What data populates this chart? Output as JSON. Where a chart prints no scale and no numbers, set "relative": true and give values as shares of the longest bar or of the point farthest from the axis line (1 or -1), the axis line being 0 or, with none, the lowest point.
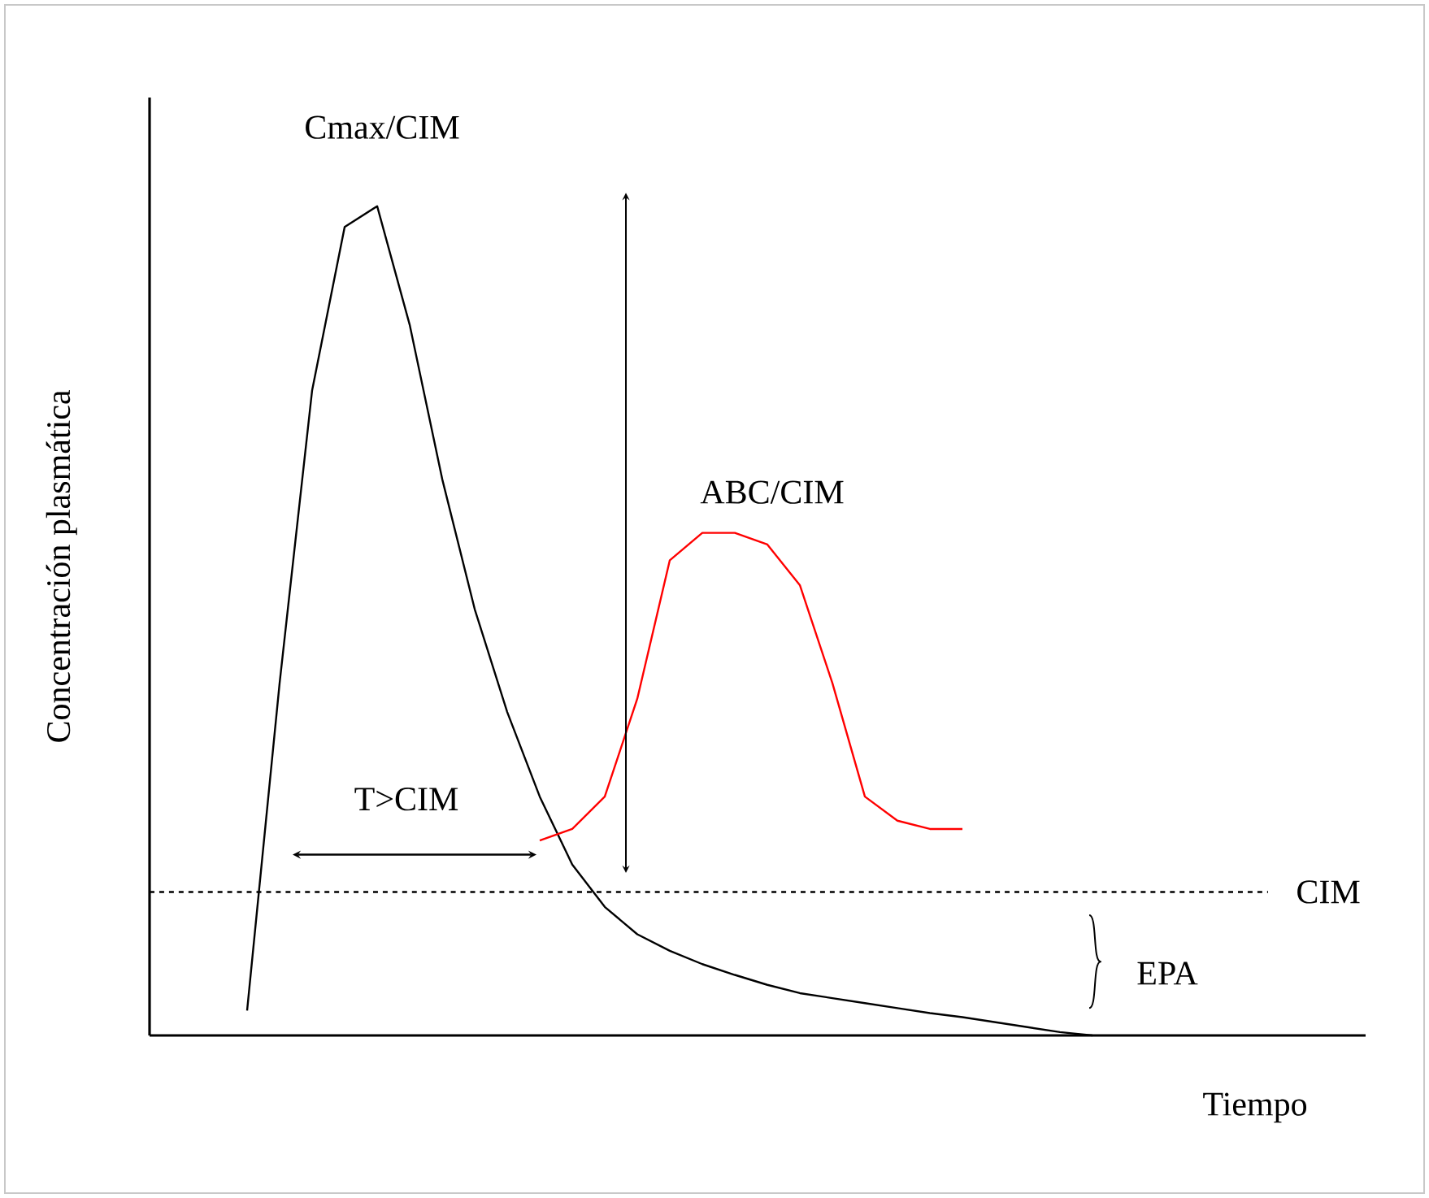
{
  "chart_data": {
    "type": "line",
    "relative": true,
    "xlabel": "Tiempo",
    "ylabel": "Concentración plasmática",
    "categories": [
      null,
      null,
      null,
      null,
      null,
      null,
      null,
      null,
      null,
      null,
      null,
      null,
      null,
      null,
      null,
      null,
      null,
      null,
      null,
      null,
      null,
      null,
      null,
      null,
      null,
      null,
      null,
      null,
      null,
      null,
      null,
      null,
      null,
      null,
      null,
      null,
      null,
      null
    ],
    "series": [
      {
        "color": "#000000",
        "values": [
          null,
          null,
          null,
          0.03,
          0.425,
          0.778,
          0.975,
          1,
          0.857,
          0.671,
          0.514,
          0.39,
          0.288,
          0.206,
          0.155,
          0.122,
          0.102,
          0.086,
          0.073,
          0.061,
          0.051,
          0.045,
          0.039,
          0.033,
          0.027,
          0.022,
          0.016,
          0.01,
          0.004,
          0,
          null,
          null,
          null,
          null,
          null,
          null,
          null,
          null
        ]
      },
      {
        "color": "#ff0000",
        "values": [
          null,
          null,
          null,
          null,
          null,
          null,
          null,
          null,
          null,
          null,
          null,
          null,
          0.235,
          0.249,
          0.288,
          0.406,
          0.573,
          0.606,
          0.606,
          0.592,
          0.543,
          0.425,
          0.288,
          0.259,
          0.249,
          0.249,
          null,
          null,
          null,
          null,
          null,
          null,
          null,
          null,
          null,
          null,
          null,
          null
        ]
      }
    ],
    "ref_lines": [
      {
        "axis": "y",
        "value": 0.173,
        "label": "CIM",
        "line_style": "dashed",
        "color": "#000000"
      }
    ],
    "annotations": [
      "Cmax/CIM",
      "ABC/CIM",
      "T>CIM",
      "EPA"
    ],
    "marker": "none",
    "line_style": "solid"
  }
}
